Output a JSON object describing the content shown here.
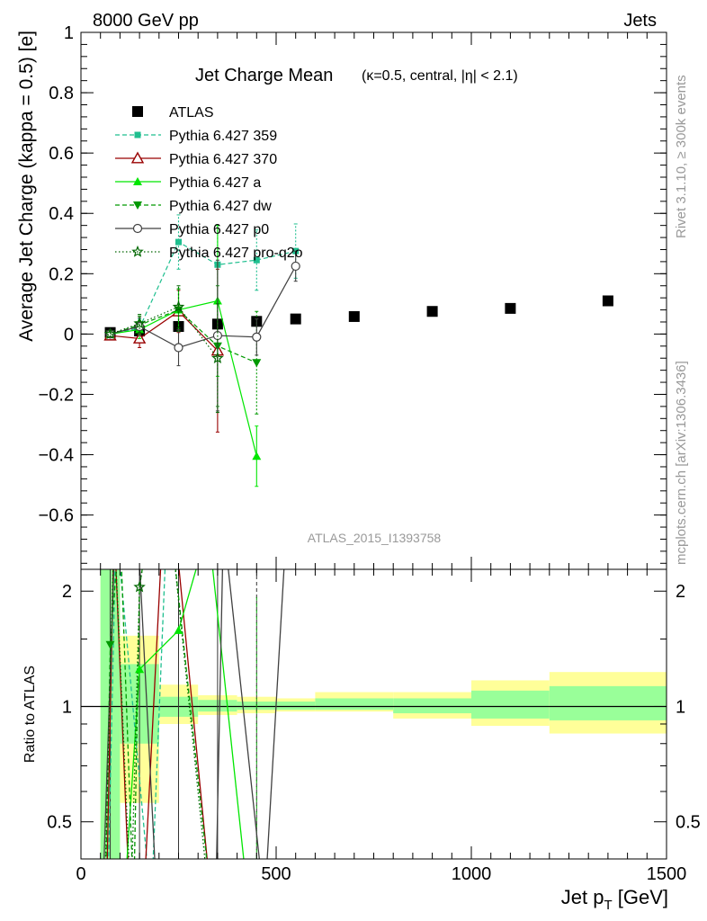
{
  "header": {
    "left": "8000 GeV pp",
    "right": "Jets"
  },
  "side": {
    "rivet": "Rivet 3.1.10, ≥ 300k events",
    "mcplots": "mcplots.cern.ch [arXiv:1306.3436]"
  },
  "chart_data": [
    {
      "type": "scatter",
      "title": "Jet Charge Mean",
      "subtitle": "(κ=0.5, central, |η| < 2.1)",
      "analysis_tag": "ATLAS_2015_I1393758",
      "xlabel": "",
      "ylabel": "Average Jet Charge (kappa = 0.5) [e]",
      "xlim": [
        0,
        1500
      ],
      "ylim": [
        -0.78,
        1.0
      ],
      "yticks": [
        -0.6,
        -0.4,
        -0.2,
        0,
        0.2,
        0.4,
        0.6,
        0.8,
        1
      ],
      "ytick_labels": [
        "−0.6",
        "−0.4",
        "−0.2",
        "0",
        "0.2",
        "0.4",
        "0.6",
        "0.8",
        "1"
      ],
      "legend_position": "top-left",
      "series": [
        {
          "name": "ATLAS",
          "color": "#000000",
          "marker": "square",
          "line": "none",
          "x": [
            75,
            150,
            250,
            350,
            450,
            550,
            700,
            900,
            1100,
            1350
          ],
          "y": [
            0.005,
            0.01,
            0.025,
            0.033,
            0.042,
            0.05,
            0.058,
            0.075,
            0.085,
            0.11
          ]
        },
        {
          "name": "Pythia 6.427 359",
          "color": "#1fbf8f",
          "marker": "filled-square-small",
          "line": "dashed",
          "x": [
            75,
            150,
            250,
            350,
            450,
            550
          ],
          "y": [
            0.0,
            0.02,
            0.305,
            0.23,
            0.245,
            0.275
          ],
          "yerr": [
            0.01,
            0.03,
            0.09,
            0.13,
            0.1,
            0.09
          ]
        },
        {
          "name": "Pythia 6.427 370",
          "color": "#990000",
          "marker": "open-triangle",
          "line": "solid",
          "x": [
            75,
            150,
            250,
            350
          ],
          "y": [
            -0.005,
            -0.015,
            0.075,
            -0.055
          ],
          "yerr": [
            0.01,
            0.03,
            0.07,
            0.27
          ]
        },
        {
          "name": "Pythia 6.427 a",
          "color": "#00e600",
          "marker": "filled-triangle",
          "line": "solid",
          "x": [
            75,
            150,
            250,
            350,
            450
          ],
          "y": [
            0.0,
            0.015,
            0.08,
            0.11,
            -0.405
          ],
          "yerr": [
            0.01,
            0.03,
            0.07,
            0.25,
            0.1
          ]
        },
        {
          "name": "Pythia 6.427 dw",
          "color": "#009900",
          "marker": "filled-triangle-down",
          "line": "dashed",
          "x": [
            75,
            150,
            250,
            350,
            450
          ],
          "y": [
            0.0,
            0.03,
            0.08,
            -0.04,
            -0.095
          ],
          "yerr": [
            0.01,
            0.03,
            0.07,
            0.2,
            0.17
          ]
        },
        {
          "name": "Pythia 6.427 p0",
          "color": "#404040",
          "marker": "open-circle",
          "line": "solid",
          "x": [
            75,
            150,
            250,
            350,
            450,
            550
          ],
          "y": [
            0.0,
            0.025,
            -0.045,
            -0.005,
            -0.01,
            0.225
          ],
          "yerr": [
            0.01,
            0.03,
            0.06,
            0.25,
            0.06,
            0.05
          ]
        },
        {
          "name": "Pythia 6.427 pro-q2o",
          "color": "#006600",
          "marker": "open-star",
          "line": "dotted",
          "x": [
            75,
            150,
            250,
            350
          ],
          "y": [
            0.0,
            0.035,
            0.09,
            -0.08
          ],
          "yerr": [
            0.01,
            0.03,
            0.07,
            0.18
          ]
        }
      ]
    },
    {
      "type": "line",
      "title": "",
      "xlabel": "Jet p_T [GeV]",
      "ylabel": "Ratio to ATLAS",
      "xlim": [
        0,
        1500
      ],
      "ylim": [
        0.4,
        2.28
      ],
      "log_y": true,
      "xticks": [
        0,
        500,
        1000,
        1500
      ],
      "yticks": [
        0.5,
        1,
        2
      ],
      "ytick_labels": [
        "0.5",
        "1",
        "2"
      ],
      "uncertainty_bands": {
        "bin_edges": [
          50,
          100,
          200,
          300,
          400,
          500,
          600,
          800,
          1000,
          1200,
          1500
        ],
        "stat_color": "#99ff99",
        "total_color": "#ffff99",
        "total": [
          [
            0.35,
            2.5
          ],
          [
            0.56,
            1.53
          ],
          [
            0.9,
            1.14
          ],
          [
            0.95,
            1.07
          ],
          [
            0.96,
            1.06
          ],
          [
            0.97,
            1.05
          ],
          [
            0.97,
            1.09
          ],
          [
            0.93,
            1.09
          ],
          [
            0.89,
            1.17
          ],
          [
            0.85,
            1.23
          ]
        ],
        "stat": [
          [
            0.35,
            2.5
          ],
          [
            0.8,
            1.29
          ],
          [
            0.94,
            1.06
          ],
          [
            0.97,
            1.04
          ],
          [
            0.98,
            1.03
          ],
          [
            0.98,
            1.03
          ],
          [
            0.98,
            1.05
          ],
          [
            0.96,
            1.05
          ],
          [
            0.93,
            1.1
          ],
          [
            0.92,
            1.13
          ]
        ]
      },
      "series": [
        {
          "name": "Pythia 6.427 359",
          "color": "#1fbf8f",
          "line": "dashed",
          "marker": "none",
          "points": [
            [
              68,
              0.3
            ],
            [
              90,
              3.0
            ],
            [
              180,
              0.3
            ],
            [
              220,
              3.0
            ]
          ]
        },
        {
          "name": "Pythia 6.427 370",
          "color": "#990000",
          "line": "solid",
          "marker": "none",
          "points": [
            [
              65,
              0.3
            ],
            [
              85,
              3.0
            ],
            [
              125,
              0.3
            ],
            [
              160,
              0.3
            ],
            [
              210,
              3.0
            ],
            [
              240,
              3.0
            ],
            [
              335,
              0.3
            ]
          ]
        },
        {
          "name": "Pythia 6.427 a",
          "color": "#00e600",
          "line": "solid",
          "marker": "filled-triangle",
          "points": [
            [
              110,
              0.3
            ],
            [
              150,
              1.25
            ],
            [
              250,
              1.58
            ],
            [
              295,
              2.28
            ],
            [
              330,
              2.7
            ],
            [
              430,
              0.3
            ]
          ]
        },
        {
          "name": "Pythia 6.427 dw",
          "color": "#009900",
          "line": "dashed",
          "marker": "filled-triangle-down",
          "points": [
            [
              62,
              0.3
            ],
            [
              75,
              1.45
            ],
            [
              100,
              3.0
            ],
            [
              135,
              0.3
            ],
            [
              150,
              2.05
            ],
            [
              175,
              3.0
            ],
            [
              230,
              3.0
            ],
            [
              335,
              0.3
            ]
          ]
        },
        {
          "name": "Pythia 6.427 p0",
          "color": "#404040",
          "line": "solid",
          "marker": "none",
          "points": [
            [
              55,
              0.3
            ],
            [
              88,
              3.0
            ],
            [
              145,
              3.0
            ],
            [
              190,
              0.38
            ],
            [
              295,
              0.3
            ],
            [
              345,
              0.3
            ],
            [
              365,
              3.0
            ],
            [
              470,
              0.3
            ],
            [
              520,
              2.28
            ],
            [
              540,
              3.0
            ]
          ]
        },
        {
          "name": "Pythia 6.427 pro-q2o",
          "color": "#006600",
          "line": "dotted",
          "marker": "open-star",
          "points": [
            [
              60,
              0.3
            ],
            [
              85,
              3.0
            ],
            [
              128,
              0.3
            ],
            [
              150,
              2.05
            ],
            [
              175,
              3.0
            ],
            [
              230,
              3.0
            ],
            [
              330,
              0.3
            ]
          ]
        }
      ]
    }
  ]
}
